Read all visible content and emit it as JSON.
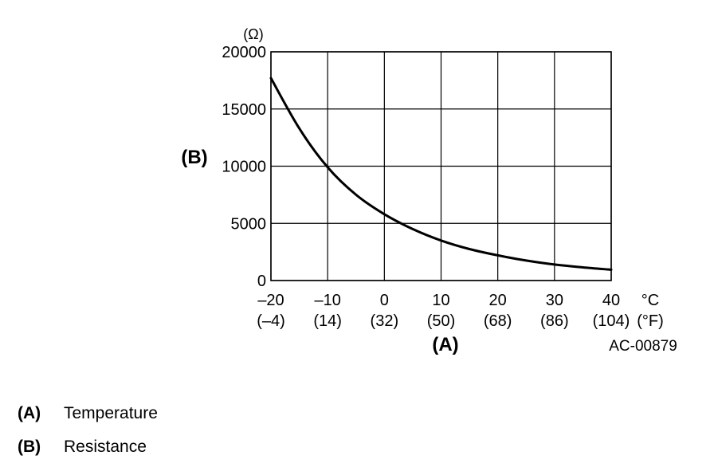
{
  "chart_data": {
    "type": "line",
    "title": "",
    "y_unit": "(Ω)",
    "y_axis_letter": "(B)",
    "x_axis_letter": "(A)",
    "x_unit_c": "°C",
    "x_unit_f": "(°F)",
    "figure_code": "AC-00879",
    "xlim": [
      -20,
      40
    ],
    "ylim": [
      0,
      20000
    ],
    "grid": true,
    "x_ticks": [
      {
        "value": -20,
        "c": "–20",
        "f": "(–4)"
      },
      {
        "value": -10,
        "c": "–10",
        "f": "(14)"
      },
      {
        "value": 0,
        "c": "0",
        "f": "(32)"
      },
      {
        "value": 10,
        "c": "10",
        "f": "(50)"
      },
      {
        "value": 20,
        "c": "20",
        "f": "(68)"
      },
      {
        "value": 30,
        "c": "30",
        "f": "(86)"
      },
      {
        "value": 40,
        "c": "40",
        "f": "(104)"
      }
    ],
    "y_ticks": [
      {
        "value": 0,
        "label": "0"
      },
      {
        "value": 5000,
        "label": "5000"
      },
      {
        "value": 10000,
        "label": "10000"
      },
      {
        "value": 15000,
        "label": "15000"
      },
      {
        "value": 20000,
        "label": "20000"
      }
    ],
    "series": [
      {
        "x": [
          -20,
          -15,
          -10,
          -5,
          0,
          5,
          10,
          15,
          20,
          25,
          30,
          35,
          40
        ],
        "y": [
          17700,
          13300,
          9900,
          7500,
          5800,
          4500,
          3500,
          2750,
          2200,
          1750,
          1400,
          1150,
          950
        ]
      }
    ]
  },
  "legend": [
    {
      "key": "(A)",
      "text": "Temperature"
    },
    {
      "key": "(B)",
      "text": "Resistance"
    }
  ]
}
